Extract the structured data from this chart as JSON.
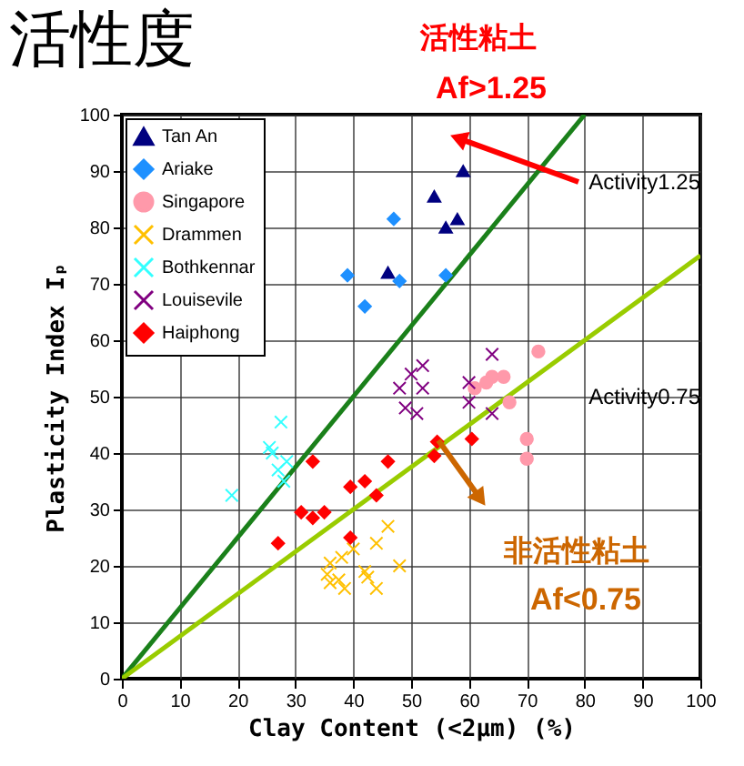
{
  "chart_data": {
    "type": "scatter",
    "title": "活性度",
    "xlabel": "Clay Content (<2μm)    (%)",
    "ylabel": "Plasticity Index Iₚ",
    "xlim": [
      0,
      100
    ],
    "ylim": [
      0,
      100
    ],
    "xticks": [
      0,
      10,
      20,
      30,
      40,
      50,
      60,
      70,
      80,
      90,
      100
    ],
    "yticks": [
      0,
      10,
      20,
      30,
      40,
      50,
      60,
      70,
      80,
      90,
      100
    ],
    "grid": true,
    "legend": "top left",
    "annotations": [
      "活性粘土",
      "Af>1.25",
      "非活性粘土",
      "Af<0.75"
    ],
    "series": [
      {
        "name": "Tan An",
        "color": "#000080",
        "marker": "triangle",
        "x": [
          59,
          54,
          56,
          58,
          46
        ],
        "values": [
          90,
          85.5,
          80,
          81.5,
          72
        ]
      },
      {
        "name": "Ariake",
        "color": "#1e90ff",
        "marker": "diamond",
        "x": [
          47,
          39,
          48,
          56,
          42
        ],
        "values": [
          81.5,
          71.5,
          70.5,
          71.5,
          66
        ]
      },
      {
        "name": "Singapore",
        "color": "#ff99aa",
        "marker": "circle",
        "x": [
          72,
          64,
          66,
          61,
          63,
          67,
          70,
          70
        ],
        "values": [
          58,
          53.5,
          53.5,
          51.5,
          52.5,
          49,
          42.5,
          39
        ]
      },
      {
        "name": "Drammen",
        "color": "#ffc000",
        "marker": "cross",
        "x": [
          46,
          44,
          40,
          38,
          36,
          36,
          37.5,
          38.5,
          42,
          42.5,
          44,
          48,
          35.5
        ],
        "values": [
          27,
          24,
          23,
          21.5,
          20.5,
          17,
          17.5,
          16,
          19,
          18,
          16,
          20,
          18.5
        ]
      },
      {
        "name": "Bothkennar",
        "color": "#33ffff",
        "marker": "cross",
        "x": [
          27.5,
          25.5,
          27,
          28.5,
          28,
          19,
          26
        ],
        "values": [
          45.5,
          41,
          37,
          38.5,
          35,
          32.5,
          40
        ]
      },
      {
        "name": "Louisevile",
        "color": "#800080",
        "marker": "cross",
        "x": [
          48,
          50,
          52,
          52,
          49,
          51,
          60,
          60,
          64,
          64
        ],
        "values": [
          51.5,
          54,
          55.5,
          51.5,
          48,
          47,
          52.5,
          49,
          57.5,
          47
        ]
      },
      {
        "name": "Haiphong",
        "color": "#ff0000",
        "marker": "diamond",
        "x": [
          33,
          46,
          39.5,
          42,
          44,
          31,
          33,
          35,
          39.5,
          27,
          54.5,
          54,
          60.5
        ],
        "values": [
          38.5,
          38.5,
          34,
          35,
          32.5,
          29.5,
          28.5,
          29.5,
          25,
          24,
          42,
          39.5,
          42.5
        ]
      },
      {
        "name": "Activity1.25",
        "type": "line",
        "color": "#1a801a",
        "x": [
          0,
          80
        ],
        "values": [
          0,
          100
        ]
      },
      {
        "name": "Activity0.75",
        "type": "line",
        "color": "#99cc00",
        "x": [
          0,
          100
        ],
        "values": [
          0,
          75
        ]
      }
    ]
  }
}
